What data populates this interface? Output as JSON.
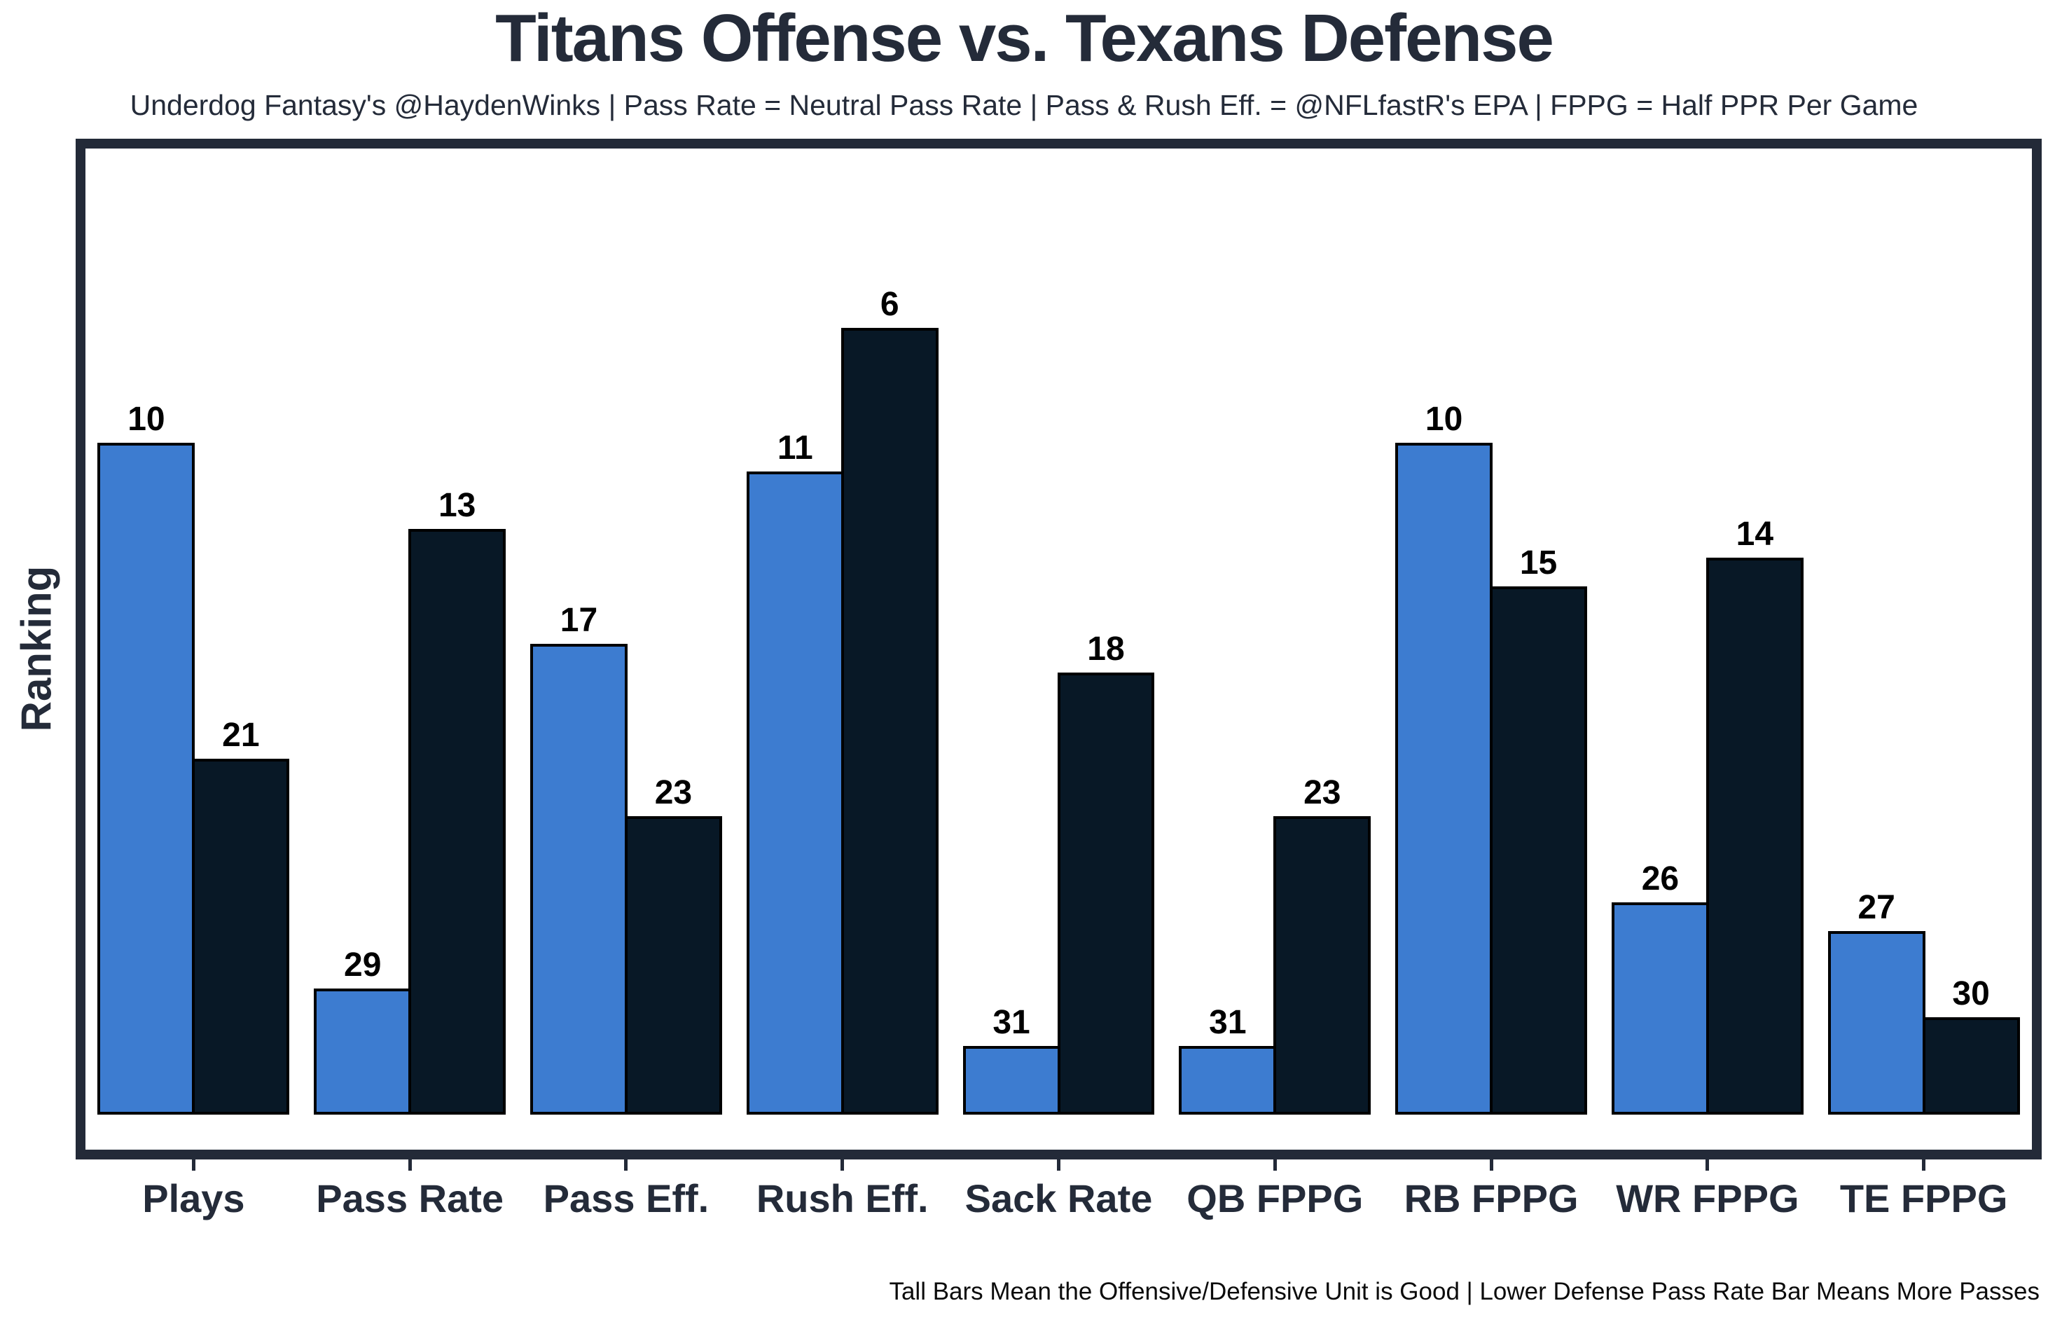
{
  "title": "Titans Offense vs. Texans Defense",
  "subtitle": "Underdog Fantasy's @HaydenWinks | Pass Rate = Neutral Pass Rate | Pass & Rush Eff. = @NFLfastR's EPA | FPPG = Half PPR Per Game",
  "footer_note": "Tall Bars Mean the Offensive/Defensive Unit is Good | Lower Defense Pass Rate Bar Means More Passes",
  "colors": {
    "offense_bar": "#3D7CD0",
    "defense_bar": "#081826",
    "frame": "#232A38",
    "value_label": "#000000"
  },
  "chart_data": {
    "type": "bar",
    "title": "Titans Offense vs. Texans Defense",
    "subtitle": "Underdog Fantasy's @HaydenWinks | Pass Rate = Neutral Pass Rate | Pass & Rush Eff. = @NFLfastR's EPA | FPPG = Half PPR Per Game",
    "xlabel": "",
    "ylabel": "Ranking",
    "categories": [
      "Plays",
      "Pass Rate",
      "Pass Eff.",
      "Rush Eff.",
      "Sack Rate",
      "QB FPPG",
      "RB FPPG",
      "WR FPPG",
      "TE FPPG"
    ],
    "series": [
      {
        "name": "Titans Offense",
        "key": "titans-offense-bar",
        "color": "#3D7CD0",
        "values": [
          10,
          29,
          17,
          11,
          31,
          31,
          10,
          26,
          27
        ]
      },
      {
        "name": "Texans Defense",
        "key": "texans-defense-bar",
        "color": "#081826",
        "values": [
          21,
          13,
          23,
          6,
          18,
          23,
          15,
          14,
          30
        ]
      }
    ],
    "value_semantics": "NFL rank out of 32 (1 = best); taller bar = better rank, bar height drawn proportional to (33 - rank)",
    "ylim": [
      0,
      33.5
    ],
    "grid": false,
    "legend_position": "none",
    "bar_labels": "rank value shown above each bar"
  }
}
